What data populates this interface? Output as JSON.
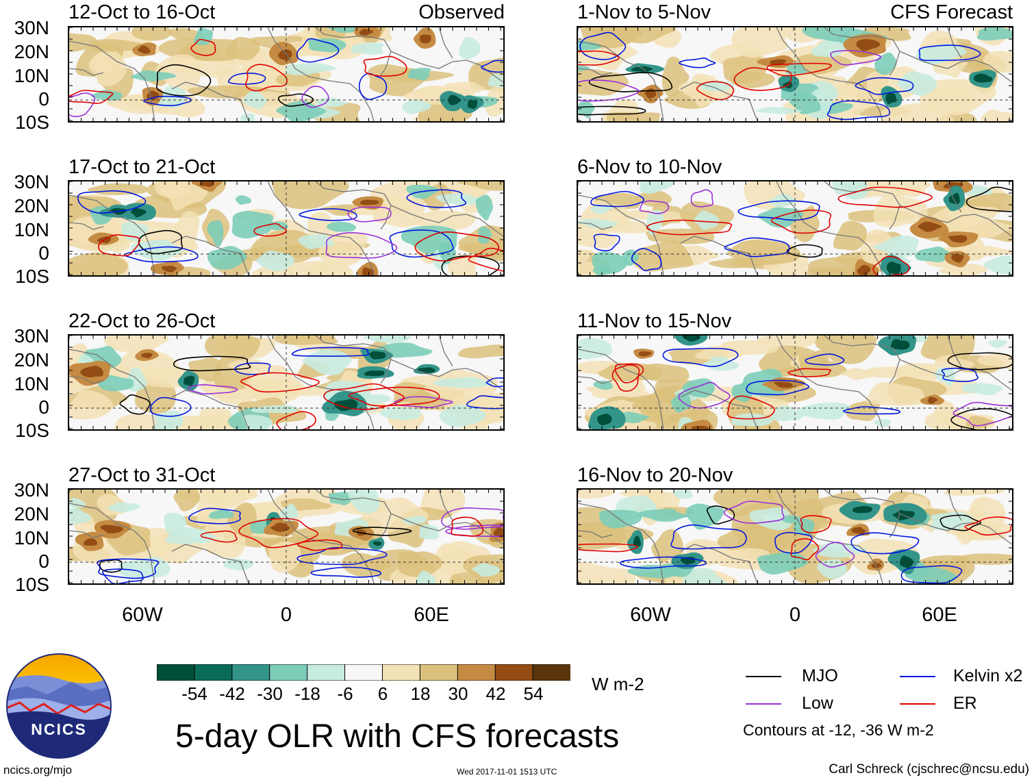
{
  "observed_label": "Observed",
  "forecast_label": "CFS Forecast",
  "panels": [
    {
      "title": "12-Oct to 16-Oct",
      "column": "observed"
    },
    {
      "title": "17-Oct to 21-Oct",
      "column": "observed"
    },
    {
      "title": "22-Oct to 26-Oct",
      "column": "observed"
    },
    {
      "title": "27-Oct to 31-Oct",
      "column": "observed"
    },
    {
      "title": "1-Nov to 5-Nov",
      "column": "forecast"
    },
    {
      "title": "6-Nov to 10-Nov",
      "column": "forecast"
    },
    {
      "title": "11-Nov to 15-Nov",
      "column": "forecast"
    },
    {
      "title": "16-Nov to 20-Nov",
      "column": "forecast"
    }
  ],
  "lat_labels": [
    "30N",
    "20N",
    "10N",
    "0",
    "10S"
  ],
  "lon_labels": [
    "60W",
    "0",
    "60E"
  ],
  "colorbar": {
    "colors": [
      "#004f3b",
      "#0b6b59",
      "#33948a",
      "#7ccdb8",
      "#c8ebe0",
      "#f7f7f7",
      "#f3e2b6",
      "#dcc17d",
      "#c58b43",
      "#934d14",
      "#5b360d"
    ],
    "labels": [
      "-54",
      "-42",
      "-30",
      "-18",
      "-6",
      "6",
      "18",
      "30",
      "42",
      "54"
    ],
    "units": "W m-2"
  },
  "legend": {
    "items": [
      {
        "label": "MJO",
        "color": "#000000"
      },
      {
        "label": "Kelvin x2",
        "color": "#0015e0"
      },
      {
        "label": "Low",
        "color": "#9a2fd8"
      },
      {
        "label": "ER",
        "color": "#e00000"
      }
    ],
    "note": "Contours at -12, -36 W m-2"
  },
  "logo_text": "NCICS",
  "main_title": "5-day OLR with CFS forecasts",
  "footer": {
    "url": "ncics.org/mjo",
    "timestamp": "Wed 2017-11-01 1513 UTC",
    "credit": "Carl Schreck (cjschrec@ncsu.edu)"
  }
}
